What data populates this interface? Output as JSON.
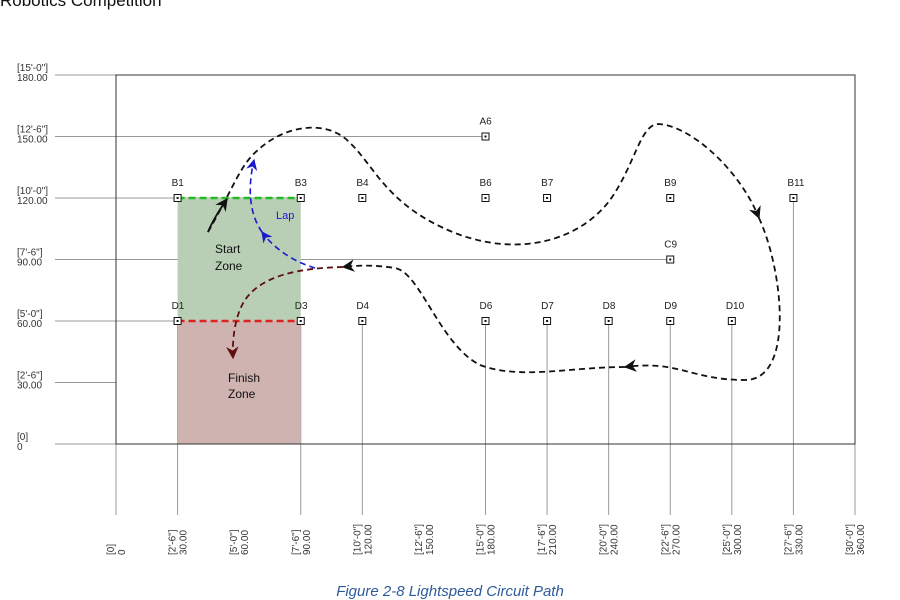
{
  "header": {
    "text": "Robotics Competition"
  },
  "caption": {
    "text": "Figure 2-8 Lightspeed Circuit Path"
  },
  "colors": {
    "start_zone": "#b8cfb6",
    "finish_zone": "#cfb3b1",
    "start_line": "#22bb22",
    "finish_line": "#dd2222",
    "finish_arrow": "#5c1010",
    "lap_path": "#1a1acc",
    "main_path": "#111111"
  },
  "axes": {
    "y_ticks": [
      {
        "feet": "[0]",
        "inches": "0",
        "value": 0
      },
      {
        "feet": "[2'-6\"]",
        "inches": "30.00",
        "value": 30
      },
      {
        "feet": "[5'-0\"]",
        "inches": "60.00",
        "value": 60
      },
      {
        "feet": "[7'-6\"]",
        "inches": "90.00",
        "value": 90
      },
      {
        "feet": "[10'-0\"]",
        "inches": "120.00",
        "value": 120
      },
      {
        "feet": "[12'-6\"]",
        "inches": "150.00",
        "value": 150
      },
      {
        "feet": "[15'-0\"]",
        "inches": "180.00",
        "value": 180
      }
    ],
    "x_ticks": [
      {
        "feet": "[0]",
        "inches": "0",
        "value": 0
      },
      {
        "feet": "[2'-6\"]",
        "inches": "30.00",
        "value": 30
      },
      {
        "feet": "[5'-0\"]",
        "inches": "60.00",
        "value": 60
      },
      {
        "feet": "[7'-6\"]",
        "inches": "90.00",
        "value": 90
      },
      {
        "feet": "[10'-0\"]",
        "inches": "120.00",
        "value": 120
      },
      {
        "feet": "[12'-6\"]",
        "inches": "150.00",
        "value": 150
      },
      {
        "feet": "[15'-0\"]",
        "inches": "180.00",
        "value": 180
      },
      {
        "feet": "[17'-6\"]",
        "inches": "210.00",
        "value": 210
      },
      {
        "feet": "[20'-0\"]",
        "inches": "240.00",
        "value": 240
      },
      {
        "feet": "[22'-6\"]",
        "inches": "270.00",
        "value": 270
      },
      {
        "feet": "[25'-0\"]",
        "inches": "300.00",
        "value": 300
      },
      {
        "feet": "[27'-6\"]",
        "inches": "330.00",
        "value": 330
      },
      {
        "feet": "[30'-0\"]",
        "inches": "360.00",
        "value": 360
      }
    ]
  },
  "markers": [
    {
      "id": "A6",
      "x": 180,
      "y": 150
    },
    {
      "id": "B1",
      "x": 30,
      "y": 120
    },
    {
      "id": "B3",
      "x": 90,
      "y": 120
    },
    {
      "id": "B4",
      "x": 120,
      "y": 120
    },
    {
      "id": "B6",
      "x": 180,
      "y": 120
    },
    {
      "id": "B7",
      "x": 210,
      "y": 120
    },
    {
      "id": "B9",
      "x": 270,
      "y": 120
    },
    {
      "id": "B11",
      "x": 330,
      "y": 120
    },
    {
      "id": "C9",
      "x": 270,
      "y": 90
    },
    {
      "id": "D1",
      "x": 30,
      "y": 60
    },
    {
      "id": "D3",
      "x": 90,
      "y": 60
    },
    {
      "id": "D4",
      "x": 120,
      "y": 60
    },
    {
      "id": "D6",
      "x": 180,
      "y": 60
    },
    {
      "id": "D7",
      "x": 210,
      "y": 60
    },
    {
      "id": "D8",
      "x": 240,
      "y": 60
    },
    {
      "id": "D9",
      "x": 270,
      "y": 60
    },
    {
      "id": "D10",
      "x": 300,
      "y": 60
    }
  ],
  "zones": {
    "start": {
      "line1": "Start",
      "line2": "Zone",
      "x_range": [
        30,
        90
      ],
      "y_range": [
        60,
        120
      ]
    },
    "finish": {
      "line1": "Finish",
      "line2": "Zone",
      "x_range": [
        30,
        90
      ],
      "y_range": [
        0,
        60
      ]
    }
  },
  "lap_label": "Lap"
}
